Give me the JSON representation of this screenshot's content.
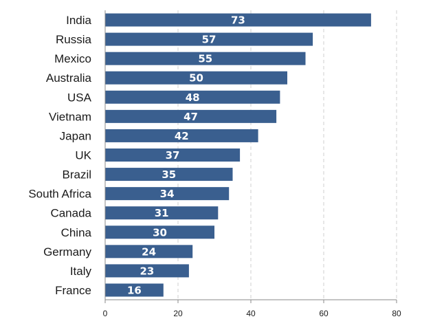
{
  "chart_data": {
    "type": "bar",
    "orientation": "horizontal",
    "categories": [
      "India",
      "Russia",
      "Mexico",
      "Australia",
      "USA",
      "Vietnam",
      "Japan",
      "UK",
      "Brazil",
      "South Africa",
      "Canada",
      "China",
      "Germany",
      "Italy",
      "France"
    ],
    "values": [
      73,
      57,
      55,
      50,
      48,
      47,
      42,
      37,
      35,
      34,
      31,
      30,
      24,
      23,
      16
    ],
    "xlim": [
      0,
      80
    ],
    "xticks": [
      0,
      20,
      40,
      60,
      80
    ],
    "grid": true,
    "bar_color": "#3a5f8f",
    "label_color": "#ffffff",
    "data_labels": true
  }
}
